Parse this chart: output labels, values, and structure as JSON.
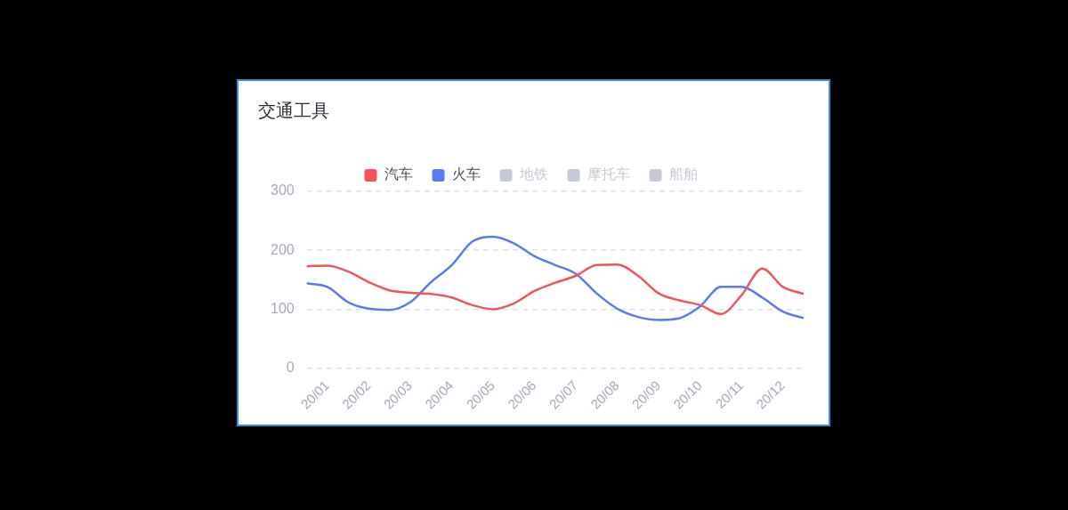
{
  "chart_data": {
    "type": "line",
    "title": "交通工具",
    "categories": [
      null,
      "20/01",
      null,
      "20/02",
      null,
      "20/03",
      null,
      "20/04",
      null,
      "20/05",
      null,
      "20/06",
      null,
      "20/07",
      null,
      "20/08",
      null,
      "20/09",
      null,
      "20/10",
      null,
      "20/11",
      null,
      "20/12",
      null
    ],
    "series": [
      {
        "name": "汽车",
        "color": "#f2545b",
        "values": [
          173,
          174,
          164,
          146,
          132,
          128,
          126,
          120,
          107,
          100,
          110,
          131,
          145,
          157,
          175,
          176,
          157,
          127,
          115,
          107,
          92,
          124,
          169,
          138,
          126
        ]
      },
      {
        "name": "火车",
        "color": "#5b7cf0",
        "values": [
          144,
          138,
          112,
          101,
          99,
          112,
          146,
          175,
          215,
          223,
          212,
          190,
          175,
          160,
          127,
          101,
          87,
          82,
          85,
          105,
          138,
          138,
          120,
          96,
          85
        ]
      },
      {
        "name": "地铁",
        "color": "#c6cad6",
        "values": [
          null,
          null,
          null,
          null,
          null,
          null,
          null,
          null,
          null,
          null,
          null,
          null,
          null,
          null,
          null,
          null,
          null,
          null,
          null,
          null,
          null,
          null,
          null,
          null,
          null
        ]
      },
      {
        "name": "摩托车",
        "color": "#c6cad6",
        "values": [
          null,
          null,
          null,
          null,
          null,
          null,
          null,
          null,
          null,
          null,
          null,
          null,
          null,
          null,
          null,
          null,
          null,
          null,
          null,
          null,
          null,
          null,
          null,
          null,
          null
        ]
      },
      {
        "name": "船舶",
        "color": "#c6cad6",
        "values": [
          null,
          null,
          null,
          null,
          null,
          null,
          null,
          null,
          null,
          null,
          null,
          null,
          null,
          null,
          null,
          null,
          null,
          null,
          null,
          null,
          null,
          null,
          null,
          null,
          null
        ]
      }
    ],
    "ylim": [
      0,
      300
    ],
    "yticks": [
      0,
      100,
      200,
      300
    ],
    "grid": "y",
    "legend": "top",
    "marker": "none",
    "line_style": "solid"
  }
}
